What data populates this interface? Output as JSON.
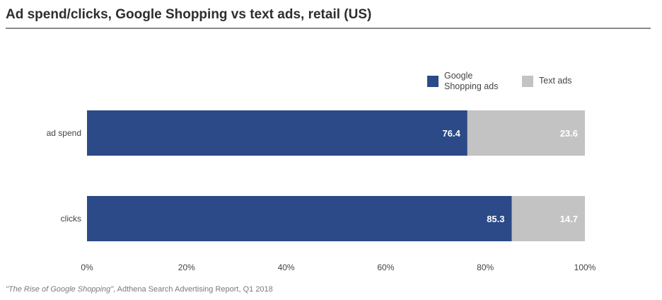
{
  "chart_data": {
    "type": "bar",
    "orientation": "horizontal",
    "stacked": true,
    "title": "Ad spend/clicks, Google Shopping vs text ads, retail (US)",
    "categories": [
      "ad spend",
      "clicks"
    ],
    "series": [
      {
        "name": "Google Shopping ads",
        "values": [
          76.4,
          85.3
        ],
        "color": "#2b4a87",
        "labels": [
          "76.4",
          "85.3"
        ]
      },
      {
        "name": "Text ads",
        "values": [
          23.6,
          14.7
        ],
        "color": "#c3c3c3",
        "labels": [
          "23.6",
          "14.7"
        ]
      }
    ],
    "xlim": [
      0,
      100
    ],
    "xticks": [
      "0%",
      "20%",
      "40%",
      "60%",
      "80%",
      "100%"
    ],
    "legend_position": "top-right",
    "grid": false
  },
  "legend": {
    "shopping_label": "Google Shopping ads",
    "text_label": "Text ads"
  },
  "source": {
    "title": "\"The Rise of Google Shopping\"",
    "rest": ", Adthena Search Advertising Report, Q1 2018"
  }
}
